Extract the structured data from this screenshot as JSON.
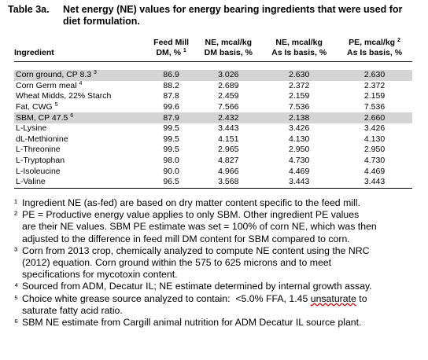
{
  "title": {
    "label": "Table 3a.",
    "text": "Net energy (NE) values for energy bearing ingredients that were used for diet formulation."
  },
  "table": {
    "header": [
      {
        "lines": [
          {
            "text": "Ingredient"
          }
        ]
      },
      {
        "lines": [
          {
            "text": "Feed Mill"
          },
          {
            "text": "DM, %",
            "sup": "1"
          }
        ]
      },
      {
        "lines": [
          {
            "text": "NE, mcal/kg"
          },
          {
            "text": "DM basis, %"
          }
        ]
      },
      {
        "lines": [
          {
            "text": "NE, mcal/kg"
          },
          {
            "text": "As Is basis, %"
          }
        ]
      },
      {
        "lines": [
          {
            "text": "PE, mcal/kg",
            "sup": "2"
          },
          {
            "text": "As Is basis, %"
          }
        ]
      }
    ],
    "rows": [
      {
        "name": "Corn ground, CP 8.3",
        "sup": "3",
        "cells": [
          "86.9",
          "3.026",
          "2.630",
          "2.630"
        ],
        "highlight": true
      },
      {
        "name": "Corn Germ meal",
        "sup": "4",
        "cells": [
          "88.2",
          "2.689",
          "2.372",
          "2.372"
        ]
      },
      {
        "name": "Wheat Midds, 22% Starch",
        "cells": [
          "87.8",
          "2.459",
          "2.159",
          "2.159"
        ]
      },
      {
        "name": "Fat, CWG",
        "sup": "5",
        "cells": [
          "99.6",
          "7.566",
          "7.536",
          "7.536"
        ]
      },
      {
        "name": "SBM, CP 47.5",
        "sup": "6",
        "cells": [
          "87.9",
          "2.432",
          "2.138",
          "2.660"
        ],
        "highlight": true
      },
      {
        "name": "L-Lysine",
        "cells": [
          "99.5",
          "3.443",
          "3.426",
          "3.426"
        ]
      },
      {
        "name": "dL-Methionine",
        "cells": [
          "99.5",
          "4.151",
          "4.130",
          "4.130"
        ]
      },
      {
        "name": "L-Threonine",
        "cells": [
          "99.5",
          "2.965",
          "2.950",
          "2.950"
        ]
      },
      {
        "name": "L-Tryptophan",
        "cells": [
          "98.0",
          "4.827",
          "4.730",
          "4.730"
        ]
      },
      {
        "name": "L-Isoleucine",
        "cells": [
          "90.0",
          "4.966",
          "4.469",
          "4.469"
        ]
      },
      {
        "name": "L-Valine",
        "cells": [
          "96.5",
          "3.568",
          "3.443",
          "3.443"
        ]
      }
    ]
  },
  "footnotes": [
    {
      "marker": "¹",
      "lines": [
        {
          "text": "Ingredient NE (as-fed) are based on dry matter content specific to the feed mill."
        }
      ]
    },
    {
      "marker": "²",
      "lines": [
        {
          "text": "PE = Productive energy value applies to only SBM. Other ingredient PE values"
        },
        {
          "text": "are their NE values. SBM PE estimate was set = 100% of corn NE, which was then"
        },
        {
          "text": "adjusted to the difference in feed mill DM content for SBM compared to corn."
        }
      ]
    },
    {
      "marker": "³",
      "lines": [
        {
          "text": "Corn from 2013 crop, chemically analyzed to compute NE content using the NRC"
        },
        {
          "text": "(2012) equation. Corn ground within the 575 to 625 microns and to meet"
        },
        {
          "text": "specifications for mycotoxin content."
        }
      ]
    },
    {
      "marker": "⁴",
      "lines": [
        {
          "text": "Sourced from ADM, Decatur IL; NE estimate determined by internal growth assay."
        }
      ]
    },
    {
      "marker": "⁵",
      "lines": [
        {
          "text": "Choice white grease source analyzed to contain:  <5.0% FFA, 1.45 ",
          "underlined": "unsaturate",
          "after": " to"
        },
        {
          "text": "saturate fatty acid ratio."
        }
      ]
    },
    {
      "marker": "⁶",
      "lines": [
        {
          "text": "SBM NE estimate from Cargill animal nutrition for ADM Decatur IL source plant."
        }
      ]
    }
  ]
}
